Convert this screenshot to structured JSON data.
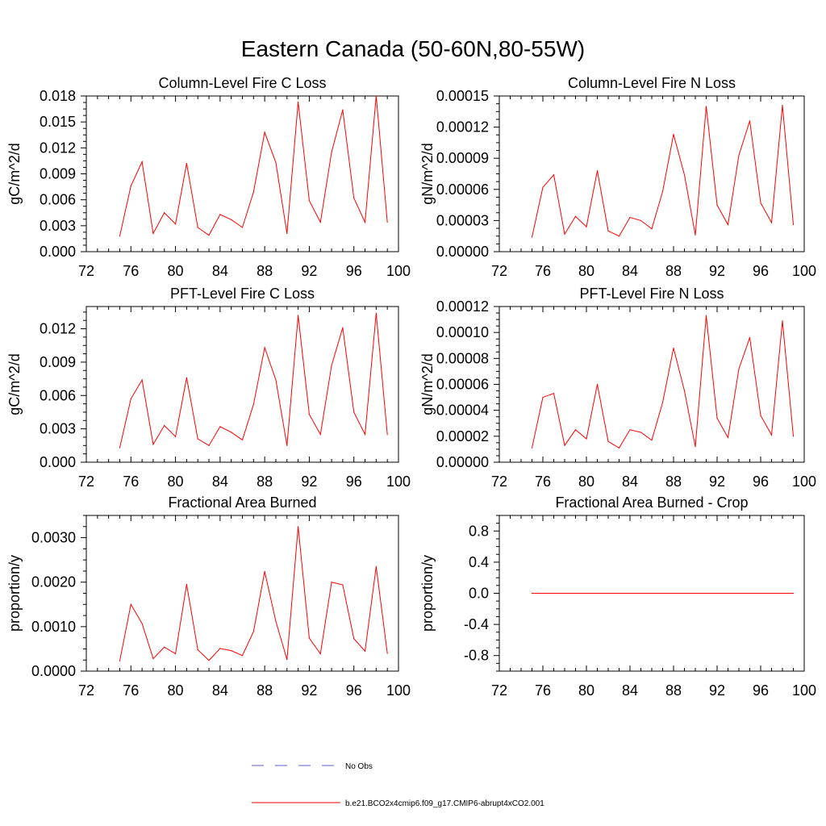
{
  "figure": {
    "title": "Eastern Canada (50-60N,80-55W)",
    "legend": [
      {
        "label": "No Obs",
        "color": "#5b5bd6",
        "dash": true
      },
      {
        "label": "b.e21.BCO2x4cmip6.f09_g17.CMIP6-abrupt4xCO2.001",
        "color": "#ff0000",
        "dash": false
      }
    ],
    "line_color": "#ff0000"
  },
  "chart_data": [
    {
      "type": "line",
      "title": "Column-Level Fire C Loss",
      "ylabel": "gC/m^2/d",
      "xlabel": "",
      "xlim": [
        72,
        100
      ],
      "xticks": [
        "72",
        "76",
        "80",
        "84",
        "88",
        "92",
        "96",
        "100"
      ],
      "xtick_values": [
        72,
        76,
        80,
        84,
        88,
        92,
        96,
        100
      ],
      "ylim": [
        0,
        0.018
      ],
      "yticks": [
        "0.000",
        "0.003",
        "0.006",
        "0.009",
        "0.012",
        "0.015",
        "0.018"
      ],
      "ytick_values": [
        0,
        0.003,
        0.006,
        0.009,
        0.012,
        0.015,
        0.018
      ],
      "x": [
        75,
        76,
        77,
        78,
        79,
        80,
        81,
        82,
        83,
        84,
        85,
        86,
        87,
        88,
        89,
        90,
        91,
        92,
        93,
        94,
        95,
        96,
        97,
        98,
        99
      ],
      "series": [
        {
          "name": "b.e21.BCO2x4cmip6.f09_g17.CMIP6-abrupt4xCO2.001",
          "values": [
            0.0018,
            0.0076,
            0.0104,
            0.0021,
            0.0045,
            0.0032,
            0.0102,
            0.0028,
            0.0019,
            0.0043,
            0.0037,
            0.0028,
            0.0069,
            0.0138,
            0.0103,
            0.0021,
            0.0173,
            0.0059,
            0.0034,
            0.0115,
            0.0164,
            0.0062,
            0.0034,
            0.018,
            0.0034
          ]
        }
      ]
    },
    {
      "type": "line",
      "title": "Column-Level Fire N Loss",
      "ylabel": "gN/m^2/d",
      "xlabel": "",
      "xlim": [
        72,
        100
      ],
      "xticks": [
        "72",
        "76",
        "80",
        "84",
        "88",
        "92",
        "96",
        "100"
      ],
      "xtick_values": [
        72,
        76,
        80,
        84,
        88,
        92,
        96,
        100
      ],
      "ylim": [
        0,
        0.00015
      ],
      "yticks": [
        "0.00000",
        "0.00003",
        "0.00006",
        "0.00009",
        "0.00012",
        "0.00015"
      ],
      "ytick_values": [
        0,
        3e-05,
        6e-05,
        9e-05,
        0.00012,
        0.00015
      ],
      "x": [
        75,
        76,
        77,
        78,
        79,
        80,
        81,
        82,
        83,
        84,
        85,
        86,
        87,
        88,
        89,
        90,
        91,
        92,
        93,
        94,
        95,
        96,
        97,
        98,
        99
      ],
      "series": [
        {
          "name": "b.e21.BCO2x4cmip6.f09_g17.CMIP6-abrupt4xCO2.001",
          "values": [
            1.4e-05,
            6.2e-05,
            7.4e-05,
            1.7e-05,
            3.4e-05,
            2.4e-05,
            7.8e-05,
            2e-05,
            1.5e-05,
            3.3e-05,
            3e-05,
            2.2e-05,
            5.8e-05,
            0.000113,
            7.4e-05,
            1.6e-05,
            0.00014,
            4.5e-05,
            2.6e-05,
            9.3e-05,
            0.000126,
            4.7e-05,
            2.8e-05,
            0.000141,
            2.6e-05
          ]
        }
      ]
    },
    {
      "type": "line",
      "title": "PFT-Level Fire C Loss",
      "ylabel": "gC/m^2/d",
      "xlabel": "",
      "xlim": [
        72,
        100
      ],
      "xticks": [
        "72",
        "76",
        "80",
        "84",
        "88",
        "92",
        "96",
        "100"
      ],
      "xtick_values": [
        72,
        76,
        80,
        84,
        88,
        92,
        96,
        100
      ],
      "ylim": [
        0,
        0.014
      ],
      "yticks": [
        "0.000",
        "0.003",
        "0.006",
        "0.009",
        "0.012"
      ],
      "ytick_values": [
        0,
        0.003,
        0.006,
        0.009,
        0.012
      ],
      "x": [
        75,
        76,
        77,
        78,
        79,
        80,
        81,
        82,
        83,
        84,
        85,
        86,
        87,
        88,
        89,
        90,
        91,
        92,
        93,
        94,
        95,
        96,
        97,
        98,
        99
      ],
      "series": [
        {
          "name": "b.e21.BCO2x4cmip6.f09_g17.CMIP6-abrupt4xCO2.001",
          "values": [
            0.0013,
            0.0057,
            0.0074,
            0.0016,
            0.0033,
            0.0023,
            0.0076,
            0.0021,
            0.0015,
            0.0032,
            0.0027,
            0.002,
            0.0052,
            0.0103,
            0.0074,
            0.0015,
            0.0132,
            0.0043,
            0.0025,
            0.0087,
            0.0121,
            0.0045,
            0.0025,
            0.0134,
            0.0025
          ]
        }
      ]
    },
    {
      "type": "line",
      "title": "PFT-Level Fire N Loss",
      "ylabel": "gN/m^2/d",
      "xlabel": "",
      "xlim": [
        72,
        100
      ],
      "xticks": [
        "72",
        "76",
        "80",
        "84",
        "88",
        "92",
        "96",
        "100"
      ],
      "xtick_values": [
        72,
        76,
        80,
        84,
        88,
        92,
        96,
        100
      ],
      "ylim": [
        0,
        0.00012
      ],
      "yticks": [
        "0.00000",
        "0.00002",
        "0.00004",
        "0.00006",
        "0.00008",
        "0.00010",
        "0.00012"
      ],
      "ytick_values": [
        0,
        2e-05,
        4e-05,
        6e-05,
        8e-05,
        0.0001,
        0.00012
      ],
      "x": [
        75,
        76,
        77,
        78,
        79,
        80,
        81,
        82,
        83,
        84,
        85,
        86,
        87,
        88,
        89,
        90,
        91,
        92,
        93,
        94,
        95,
        96,
        97,
        98,
        99
      ],
      "series": [
        {
          "name": "b.e21.BCO2x4cmip6.f09_g17.CMIP6-abrupt4xCO2.001",
          "values": [
            1.1e-05,
            5e-05,
            5.3e-05,
            1.3e-05,
            2.5e-05,
            1.8e-05,
            6e-05,
            1.6e-05,
            1.1e-05,
            2.5e-05,
            2.3e-05,
            1.7e-05,
            4.6e-05,
            8.8e-05,
            5.5e-05,
            1.2e-05,
            0.000113,
            3.4e-05,
            1.9e-05,
            7.2e-05,
            9.6e-05,
            3.6e-05,
            2.1e-05,
            0.000109,
            2e-05
          ]
        }
      ]
    },
    {
      "type": "line",
      "title": "Fractional Area Burned",
      "ylabel": "proportion/y",
      "xlabel": "",
      "xlim": [
        72,
        100
      ],
      "xticks": [
        "72",
        "76",
        "80",
        "84",
        "88",
        "92",
        "96",
        "100"
      ],
      "xtick_values": [
        72,
        76,
        80,
        84,
        88,
        92,
        96,
        100
      ],
      "ylim": [
        0,
        0.0035
      ],
      "yticks": [
        "0.0000",
        "0.0010",
        "0.0020",
        "0.0030"
      ],
      "ytick_values": [
        0,
        0.001,
        0.002,
        0.003
      ],
      "x": [
        75,
        76,
        77,
        78,
        79,
        80,
        81,
        82,
        83,
        84,
        85,
        86,
        87,
        88,
        89,
        90,
        91,
        92,
        93,
        94,
        95,
        96,
        97,
        98,
        99
      ],
      "series": [
        {
          "name": "b.e21.BCO2x4cmip6.f09_g17.CMIP6-abrupt4xCO2.001",
          "values": [
            0.00023,
            0.0015,
            0.00107,
            0.00028,
            0.00054,
            0.00039,
            0.00195,
            0.00048,
            0.00024,
            0.00051,
            0.00046,
            0.00035,
            0.00089,
            0.00224,
            0.00112,
            0.00026,
            0.00325,
            0.00074,
            0.00039,
            0.002,
            0.00194,
            0.00073,
            0.00045,
            0.00235,
            0.0004
          ]
        }
      ]
    },
    {
      "type": "line",
      "title": "Fractional Area Burned - Crop",
      "ylabel": "proportion/y",
      "xlabel": "",
      "xlim": [
        72,
        100
      ],
      "xticks": [
        "72",
        "76",
        "80",
        "84",
        "88",
        "92",
        "96",
        "100"
      ],
      "xtick_values": [
        72,
        76,
        80,
        84,
        88,
        92,
        96,
        100
      ],
      "ylim": [
        -1.0,
        1.0
      ],
      "yticks": [
        "-0.8",
        "-0.4",
        "0.0",
        "0.4",
        "0.8"
      ],
      "ytick_values": [
        -0.8,
        -0.4,
        0.0,
        0.4,
        0.8
      ],
      "x": [
        75,
        76,
        77,
        78,
        79,
        80,
        81,
        82,
        83,
        84,
        85,
        86,
        87,
        88,
        89,
        90,
        91,
        92,
        93,
        94,
        95,
        96,
        97,
        98,
        99
      ],
      "series": [
        {
          "name": "b.e21.BCO2x4cmip6.f09_g17.CMIP6-abrupt4xCO2.001",
          "values": [
            0,
            0,
            0,
            0,
            0,
            0,
            0,
            0,
            0,
            0,
            0,
            0,
            0,
            0,
            0,
            0,
            0,
            0,
            0,
            0,
            0,
            0,
            0,
            0,
            0
          ]
        }
      ]
    }
  ]
}
